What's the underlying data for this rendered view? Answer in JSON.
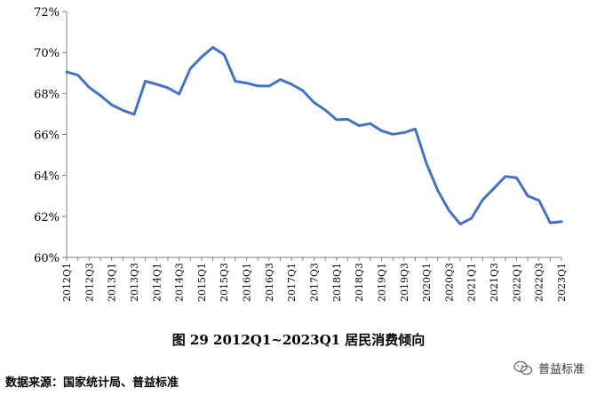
{
  "chart_data": {
    "type": "line",
    "title": "",
    "xlabel": "",
    "ylabel": "",
    "ylim": [
      0.6,
      0.72
    ],
    "yticks": [
      "60%",
      "62%",
      "64%",
      "66%",
      "68%",
      "70%",
      "72%"
    ],
    "ytick_values": [
      0.6,
      0.62,
      0.64,
      0.66,
      0.68,
      0.7,
      0.72
    ],
    "x": [
      "2012Q1",
      "2012Q2",
      "2012Q3",
      "2012Q4",
      "2013Q1",
      "2013Q2",
      "2013Q3",
      "2013Q4",
      "2014Q1",
      "2014Q2",
      "2014Q3",
      "2014Q4",
      "2015Q1",
      "2015Q2",
      "2015Q3",
      "2015Q4",
      "2016Q1",
      "2016Q2",
      "2016Q3",
      "2016Q4",
      "2017Q1",
      "2017Q2",
      "2017Q3",
      "2017Q4",
      "2018Q1",
      "2018Q2",
      "2018Q3",
      "2018Q4",
      "2019Q1",
      "2019Q2",
      "2019Q3",
      "2019Q4",
      "2020Q1",
      "2020Q2",
      "2020Q3",
      "2020Q4",
      "2021Q1",
      "2021Q2",
      "2021Q3",
      "2021Q4",
      "2022Q1",
      "2022Q2",
      "2022Q3",
      "2022Q4",
      "2023Q1"
    ],
    "xtick_labels": [
      "2012Q1",
      "2012Q3",
      "2013Q1",
      "2013Q3",
      "2014Q1",
      "2014Q3",
      "2015Q1",
      "2015Q3",
      "2016Q1",
      "2016Q3",
      "2017Q1",
      "2017Q3",
      "2018Q1",
      "2018Q3",
      "2019Q1",
      "2019Q3",
      "2020Q1",
      "2020Q3",
      "2021Q1",
      "2021Q3",
      "2022Q1",
      "2022Q3",
      "2023Q1"
    ],
    "series": [
      {
        "values": [
          0.6905,
          0.689,
          0.683,
          0.679,
          0.6745,
          0.6718,
          0.6698,
          0.686,
          0.6845,
          0.6828,
          0.6797,
          0.6922,
          0.6978,
          0.7025,
          0.699,
          0.686,
          0.6851,
          0.6837,
          0.6836,
          0.6868,
          0.6845,
          0.6814,
          0.6756,
          0.6719,
          0.6672,
          0.6674,
          0.6643,
          0.6653,
          0.6618,
          0.6601,
          0.6609,
          0.6627,
          0.6458,
          0.6326,
          0.6229,
          0.6163,
          0.6191,
          0.6282,
          0.6337,
          0.6395,
          0.6389,
          0.63,
          0.6278,
          0.6169,
          0.6174
        ],
        "color": "#4472C4"
      }
    ],
    "grid": false
  },
  "caption": "图 29   2012Q1~2023Q1 居民消费倾向",
  "source": "数据来源：国家统计局、普益标准",
  "watermark": {
    "text": "普益标准",
    "icon": "wechat-icon"
  }
}
